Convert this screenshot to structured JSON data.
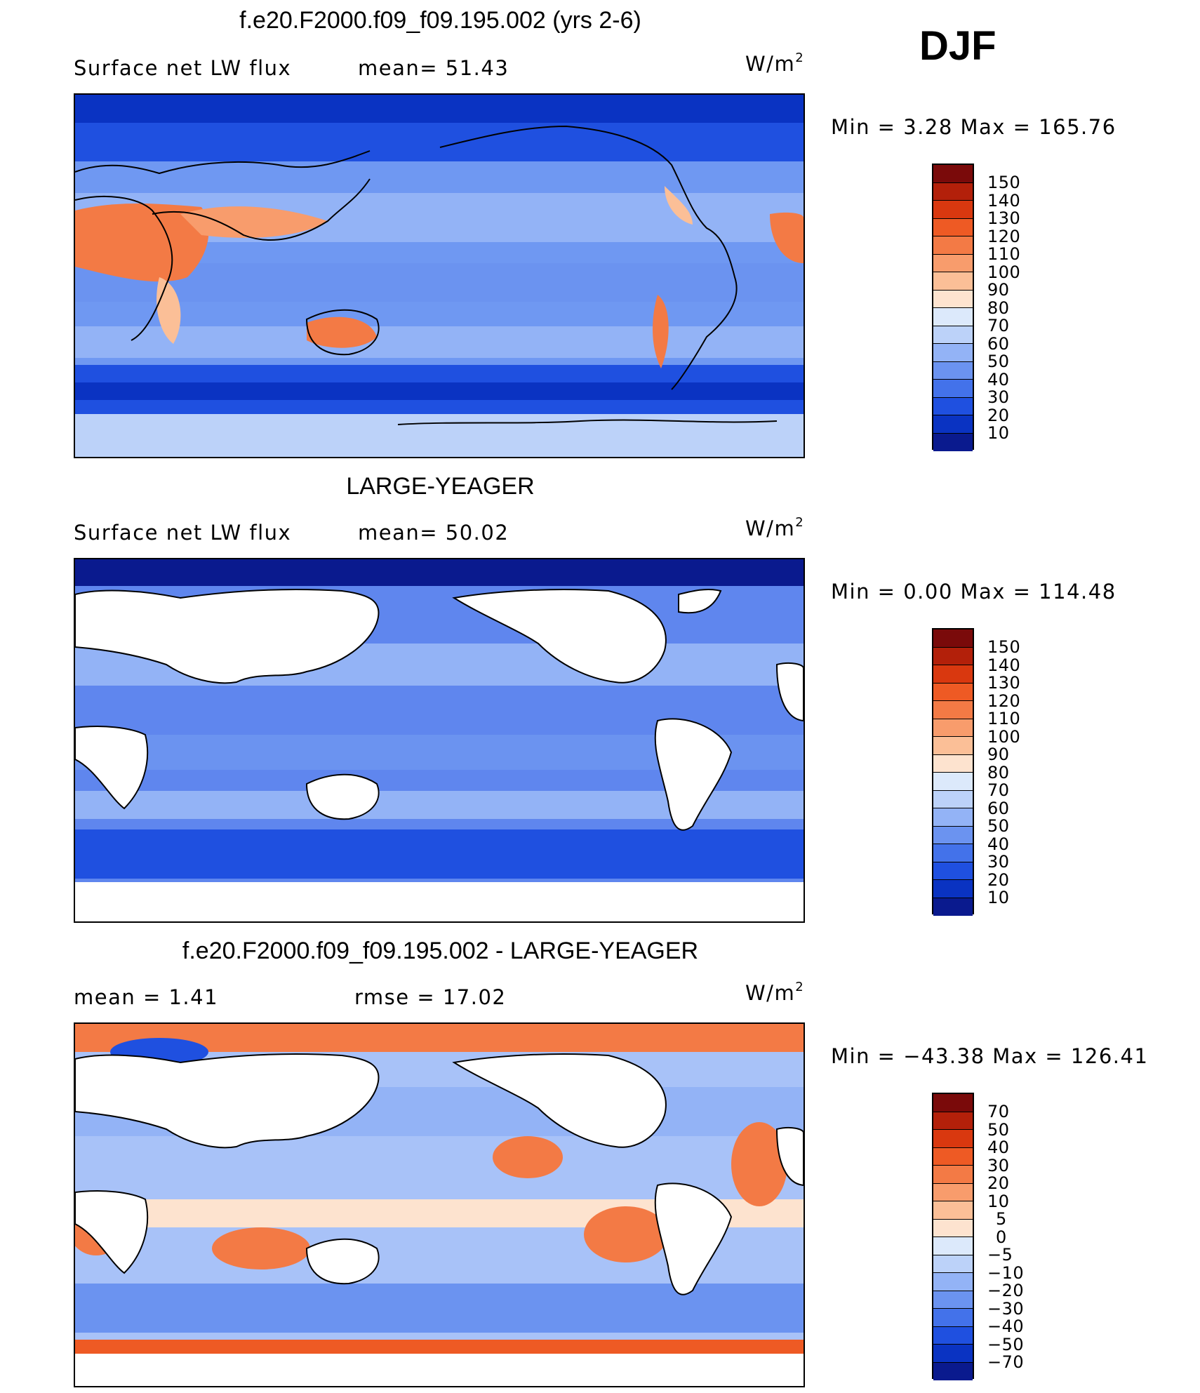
{
  "season_label": "DJF",
  "units_label": "W/m",
  "units_exponent": "2",
  "panels": [
    {
      "title": "f.e20.F2000.f09_f09.195.002 (yrs 2-6)",
      "left_text": "Surface net LW flux",
      "mid_text": "mean=  51.43",
      "minmax": "Min  =    3.28 Max  =  165.76",
      "masked_land": false,
      "ocean_color": "#6f98f2",
      "colorbar": [
        "150",
        "140",
        "130",
        "120",
        "110",
        "100",
        "90",
        "80",
        "70",
        "60",
        "50",
        "40",
        "30",
        "20",
        "10"
      ]
    },
    {
      "title": "LARGE-YEAGER",
      "left_text": "Surface net LW flux",
      "mid_text": "mean=  50.02",
      "minmax": "Min  =    0.00 Max  =  114.48",
      "masked_land": true,
      "ocean_color": "#5f86ee",
      "colorbar": [
        "150",
        "140",
        "130",
        "120",
        "110",
        "100",
        "90",
        "80",
        "70",
        "60",
        "50",
        "40",
        "30",
        "20",
        "10"
      ]
    },
    {
      "title": "f.e20.F2000.f09_f09.195.002 - LARGE-YEAGER",
      "left_text": "mean  =     1.41",
      "mid_text": "rmse  =    17.02",
      "minmax": "Min  = −43.38 Max  =  126.41",
      "masked_land": true,
      "ocean_color": "#a8c2f8",
      "colorbar": [
        "70",
        "50",
        "40",
        "30",
        "20",
        "10",
        "5",
        "0",
        "−5",
        "−10",
        "−20",
        "−30",
        "−40",
        "−50",
        "−70"
      ]
    }
  ],
  "colors": {
    "abs_scale": [
      "#7a0a0a",
      "#b3200a",
      "#d9380f",
      "#ee5a24",
      "#f37a45",
      "#f89c6c",
      "#fbbf97",
      "#fde3cf",
      "#dce9fb",
      "#bcd2f9",
      "#93b3f6",
      "#6b93f0",
      "#4372ea",
      "#1f50e0",
      "#0a33c2",
      "#0a1a8e"
    ],
    "diff_scale": [
      "#7a0a0a",
      "#b3200a",
      "#d9380f",
      "#ee5a24",
      "#f37a45",
      "#f89c6c",
      "#fbbf97",
      "#fde3cf",
      "#dce9fb",
      "#bcd2f9",
      "#93b3f6",
      "#6b93f0",
      "#4372ea",
      "#1f50e0",
      "#0a33c2",
      "#0a1a8e"
    ]
  }
}
